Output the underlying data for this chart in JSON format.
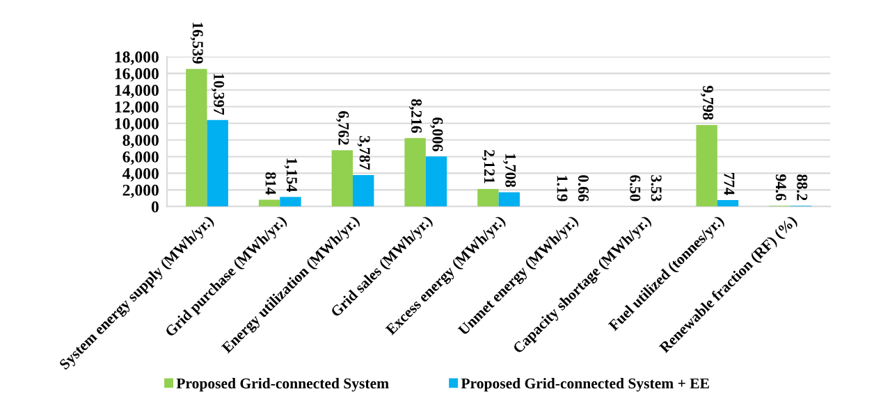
{
  "chart_data": {
    "type": "bar",
    "categories": [
      "System energy supply (MWh/yr.)",
      "Grid purchase (MWh/yr.)",
      "Energy utilization (MWh/yr.)",
      "Grid sales (MWh/yr.)",
      "Excess energy (MWh/yr.)",
      "Unmet energy (MWh/yr.)",
      "Capacity shortage (MWh/yr.)",
      "Fuel utilized (tonnes/yr.)",
      "Renewable fraction (RF) (%)"
    ],
    "series": [
      {
        "name": "Proposed Grid-connected System",
        "color": "#92d050",
        "values": [
          16539,
          814,
          6762,
          8216,
          2121,
          1.19,
          6.5,
          9798,
          94.6
        ],
        "value_labels": [
          "16,539",
          "814",
          "6,762",
          "8,216",
          "2,121",
          "1.19",
          "6.50",
          "9,798",
          "94.6"
        ]
      },
      {
        "name": "Proposed Grid-connected System + EE",
        "color": "#00b0f0",
        "values": [
          10397,
          1154,
          3787,
          6006,
          1708,
          0.66,
          3.53,
          774,
          88.2
        ],
        "value_labels": [
          "10,397",
          "1,154",
          "3,787",
          "6,006",
          "1,708",
          "0.66",
          "3.53",
          "774",
          "88.2"
        ]
      }
    ],
    "ylim": [
      0,
      18000
    ],
    "yticks": [
      0,
      {
        "value": 2000,
        "label": "2,000"
      },
      {
        "value": 4000,
        "label": "4,000"
      },
      {
        "value": 6000,
        "label": "6,000"
      },
      {
        "value": 8000,
        "label": "8,000"
      },
      {
        "value": 10000,
        "label": "10,000"
      },
      {
        "value": 12000,
        "label": "12,000"
      },
      {
        "value": 14000,
        "label": "14,000"
      },
      {
        "value": 16000,
        "label": "16,000"
      },
      {
        "value": 18000,
        "label": "18,000"
      }
    ],
    "grid": "y",
    "legend": "bottom"
  }
}
